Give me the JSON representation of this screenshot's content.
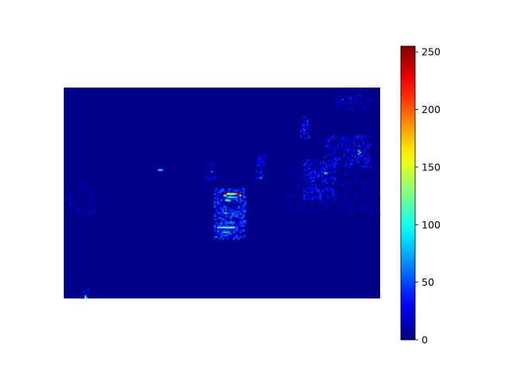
{
  "chart_data": {
    "type": "heatmap",
    "title": "",
    "xlabel": "",
    "ylabel": "",
    "axes_visible": false,
    "colormap": "jet",
    "color_range": [
      0,
      255
    ],
    "colorbar": {
      "position": "right",
      "ticks": [
        0,
        50,
        100,
        150,
        200,
        250
      ],
      "tick_labels": [
        "0",
        "50",
        "100",
        "150",
        "200",
        "250"
      ]
    },
    "grid_size": {
      "cols": 198,
      "rows": 132
    },
    "background_value": 2,
    "hotspots": [
      {
        "c": 100,
        "r": 66,
        "v": 240
      },
      {
        "c": 101,
        "r": 66,
        "v": 250
      },
      {
        "c": 102,
        "r": 66,
        "v": 170
      },
      {
        "c": 108,
        "r": 66,
        "v": 220
      },
      {
        "c": 109,
        "r": 66,
        "v": 245
      },
      {
        "c": 110,
        "r": 66,
        "v": 255
      },
      {
        "c": 103,
        "r": 66,
        "v": 160
      },
      {
        "c": 104,
        "r": 66,
        "v": 150
      },
      {
        "c": 105,
        "r": 66,
        "v": 130
      },
      {
        "c": 106,
        "r": 66,
        "v": 140
      },
      {
        "c": 107,
        "r": 66,
        "v": 190
      },
      {
        "c": 100,
        "r": 67,
        "v": 110
      },
      {
        "c": 101,
        "r": 67,
        "v": 90
      },
      {
        "c": 110,
        "r": 67,
        "v": 120
      },
      {
        "c": 102,
        "r": 68,
        "v": 60
      },
      {
        "c": 103,
        "r": 68,
        "v": 90
      },
      {
        "c": 104,
        "r": 68,
        "v": 100
      },
      {
        "c": 105,
        "r": 68,
        "v": 80
      },
      {
        "c": 106,
        "r": 68,
        "v": 85
      },
      {
        "c": 107,
        "r": 68,
        "v": 70
      },
      {
        "c": 101,
        "r": 70,
        "v": 100
      },
      {
        "c": 102,
        "r": 70,
        "v": 120
      },
      {
        "c": 103,
        "r": 70,
        "v": 95
      },
      {
        "c": 100,
        "r": 78,
        "v": 70
      },
      {
        "c": 101,
        "r": 78,
        "v": 90
      },
      {
        "c": 96,
        "r": 87,
        "v": 85
      },
      {
        "c": 97,
        "r": 87,
        "v": 95
      },
      {
        "c": 98,
        "r": 87,
        "v": 90
      },
      {
        "c": 99,
        "r": 87,
        "v": 100
      },
      {
        "c": 100,
        "r": 87,
        "v": 110
      },
      {
        "c": 101,
        "r": 87,
        "v": 105
      },
      {
        "c": 102,
        "r": 87,
        "v": 95
      },
      {
        "c": 103,
        "r": 87,
        "v": 100
      },
      {
        "c": 104,
        "r": 87,
        "v": 110
      },
      {
        "c": 105,
        "r": 87,
        "v": 120
      },
      {
        "c": 106,
        "r": 87,
        "v": 95
      },
      {
        "c": 98,
        "r": 84,
        "v": 60
      },
      {
        "c": 104,
        "r": 84,
        "v": 70
      },
      {
        "c": 99,
        "r": 90,
        "v": 70
      },
      {
        "c": 100,
        "r": 90,
        "v": 75
      },
      {
        "c": 101,
        "r": 90,
        "v": 80
      },
      {
        "c": 102,
        "r": 90,
        "v": 70
      },
      {
        "c": 103,
        "r": 90,
        "v": 65
      },
      {
        "c": 59,
        "r": 51,
        "v": 80
      },
      {
        "c": 60,
        "r": 51,
        "v": 90
      },
      {
        "c": 61,
        "r": 51,
        "v": 75
      },
      {
        "c": 92,
        "r": 52,
        "v": 60
      },
      {
        "c": 123,
        "r": 56,
        "v": 70
      },
      {
        "c": 163,
        "r": 53,
        "v": 95
      },
      {
        "c": 164,
        "r": 53,
        "v": 80
      },
      {
        "c": 184,
        "r": 39,
        "v": 85
      },
      {
        "c": 185,
        "r": 40,
        "v": 90
      },
      {
        "c": 184,
        "r": 41,
        "v": 70
      },
      {
        "c": 150,
        "r": 26,
        "v": 55
      },
      {
        "c": 174,
        "r": 7,
        "v": 50
      },
      {
        "c": 179,
        "r": 6,
        "v": 45
      },
      {
        "c": 13,
        "r": 130,
        "v": 80
      },
      {
        "c": 13,
        "r": 131,
        "v": 120
      },
      {
        "c": 14,
        "r": 131,
        "v": 70
      }
    ],
    "clusters": [
      {
        "c0": 94,
        "c1": 114,
        "r0": 63,
        "r1": 95,
        "v": 40,
        "density": 0.55
      },
      {
        "c0": 150,
        "c1": 170,
        "r0": 45,
        "r1": 70,
        "v": 30,
        "density": 0.35
      },
      {
        "c0": 163,
        "c1": 192,
        "r0": 30,
        "r1": 50,
        "v": 28,
        "density": 0.3
      },
      {
        "c0": 148,
        "c1": 154,
        "r0": 18,
        "r1": 32,
        "v": 30,
        "density": 0.35
      },
      {
        "c0": 170,
        "c1": 194,
        "r0": 4,
        "r1": 14,
        "v": 22,
        "density": 0.15
      },
      {
        "c0": 120,
        "c1": 126,
        "r0": 42,
        "r1": 58,
        "v": 28,
        "density": 0.3
      },
      {
        "c0": 88,
        "c1": 96,
        "r0": 48,
        "r1": 58,
        "v": 25,
        "density": 0.3
      },
      {
        "c0": 0,
        "c1": 20,
        "r0": 60,
        "r1": 80,
        "v": 18,
        "density": 0.12
      },
      {
        "c0": 10,
        "c1": 16,
        "r0": 126,
        "r1": 132,
        "v": 30,
        "density": 0.3
      },
      {
        "c0": 140,
        "c1": 198,
        "r0": 50,
        "r1": 80,
        "v": 15,
        "density": 0.08
      }
    ]
  }
}
